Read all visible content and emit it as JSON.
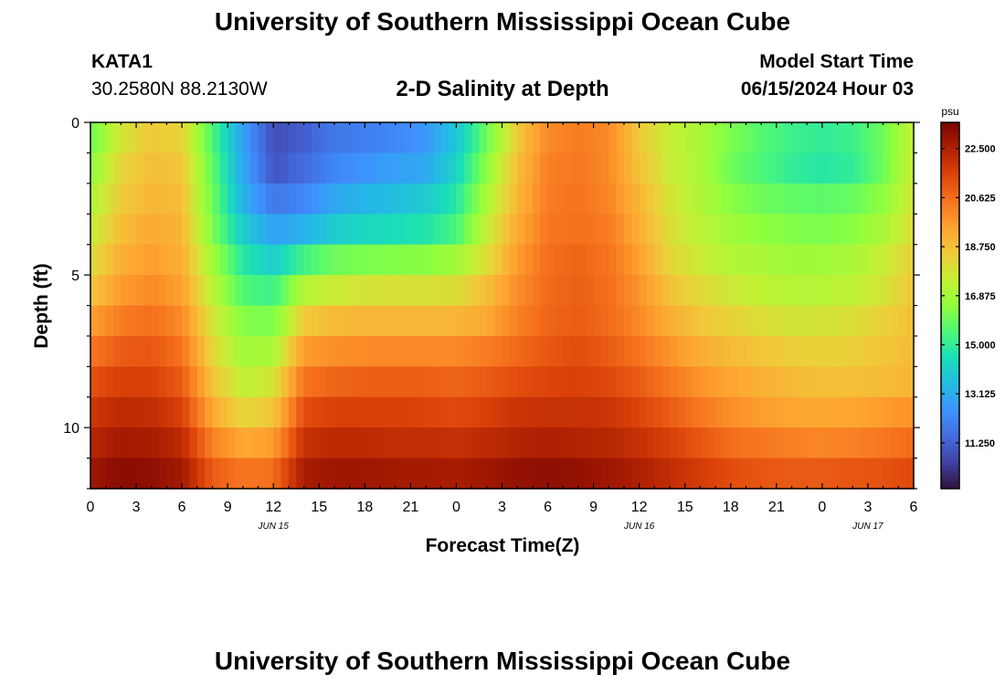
{
  "header": {
    "title": "University of Southern Mississippi Ocean Cube",
    "station": "KATA1",
    "coords": "30.2580N  88.2130W",
    "plot_title": "2-D Salinity at Depth",
    "model_start_label": "Model Start Time",
    "model_start_value": "06/15/2024 Hour 03"
  },
  "footer": {
    "title": "University of Southern Mississippi Ocean Cube"
  },
  "chart_data": {
    "type": "heatmap",
    "title": "2-D Salinity at Depth",
    "xlabel": "Forecast Time(Z)",
    "ylabel": "Depth (ft)",
    "x_range_hours": [
      0,
      54
    ],
    "y_range_ft": [
      0,
      12
    ],
    "x_ticks": [
      "0",
      "3",
      "6",
      "9",
      "12",
      "15",
      "18",
      "21",
      "0",
      "3",
      "6",
      "9",
      "12",
      "15",
      "18",
      "21",
      "0",
      "3",
      "6"
    ],
    "y_ticks": [
      0,
      5,
      10
    ],
    "date_labels": [
      {
        "hour": 12,
        "label": "JUN 15"
      },
      {
        "hour": 36,
        "label": "JUN 16"
      },
      {
        "hour": 51,
        "label": "JUN 17"
      }
    ],
    "colorbar": {
      "unit": "psu",
      "min": 9.5,
      "max": 23.5,
      "ticks": [
        "22.500",
        "20.625",
        "18.750",
        "16.875",
        "15.000",
        "13.125",
        "11.250"
      ]
    },
    "depth_levels_ft": [
      0.5,
      1.5,
      2.5,
      3.5,
      4.5,
      5.5,
      6.5,
      7.5,
      8.5,
      9.5,
      10.5,
      11.5
    ],
    "time_hours": [
      0,
      2,
      4,
      6,
      8,
      10,
      12,
      14,
      16,
      18,
      20,
      22,
      24,
      26,
      28,
      30,
      32,
      34,
      36,
      38,
      40,
      42,
      44,
      46,
      48,
      50,
      52,
      54
    ],
    "salinity_psu": [
      [
        16.0,
        17.8,
        18.5,
        18.3,
        15.5,
        12.8,
        10.8,
        11.2,
        11.8,
        12.0,
        12.2,
        12.6,
        13.8,
        16.0,
        18.5,
        20.0,
        20.3,
        20.0,
        18.5,
        17.5,
        17.0,
        16.2,
        15.6,
        15.2,
        15.0,
        15.2,
        16.0,
        17.5
      ],
      [
        16.5,
        18.2,
        18.8,
        18.6,
        15.8,
        13.0,
        11.0,
        11.5,
        12.2,
        12.5,
        12.8,
        13.0,
        14.2,
        16.5,
        18.8,
        20.2,
        20.4,
        20.0,
        18.7,
        17.6,
        17.0,
        16.0,
        15.5,
        15.0,
        14.8,
        15.0,
        16.0,
        17.6
      ],
      [
        17.0,
        18.5,
        19.0,
        18.8,
        16.0,
        13.3,
        11.8,
        12.2,
        13.0,
        13.3,
        13.6,
        13.9,
        14.8,
        17.0,
        19.0,
        20.3,
        20.5,
        20.1,
        19.0,
        17.8,
        17.1,
        16.4,
        16.0,
        15.8,
        15.7,
        15.9,
        16.5,
        17.8
      ],
      [
        17.5,
        18.8,
        19.3,
        19.0,
        16.2,
        14.0,
        12.8,
        13.2,
        14.0,
        14.3,
        14.5,
        14.7,
        15.4,
        17.5,
        19.3,
        20.4,
        20.6,
        20.3,
        19.2,
        18.0,
        17.3,
        16.8,
        16.5,
        16.3,
        16.2,
        16.4,
        17.0,
        18.0
      ],
      [
        18.0,
        19.2,
        19.6,
        19.2,
        16.8,
        14.8,
        14.0,
        15.3,
        16.0,
        16.2,
        16.3,
        16.4,
        16.8,
        18.0,
        19.6,
        20.6,
        20.8,
        20.5,
        19.5,
        18.2,
        17.6,
        17.2,
        17.0,
        16.8,
        16.8,
        17.0,
        17.5,
        18.4
      ],
      [
        18.6,
        19.6,
        20.0,
        19.5,
        17.3,
        15.5,
        15.2,
        17.2,
        17.6,
        17.8,
        17.9,
        17.9,
        18.0,
        18.8,
        19.9,
        20.7,
        20.9,
        20.6,
        19.8,
        18.7,
        18.1,
        17.7,
        17.4,
        17.2,
        17.2,
        17.4,
        17.8,
        18.6
      ],
      [
        19.5,
        20.3,
        20.6,
        20.0,
        17.8,
        16.3,
        16.2,
        18.5,
        18.9,
        19.0,
        19.0,
        19.0,
        19.0,
        19.3,
        20.2,
        20.8,
        21.0,
        20.7,
        20.0,
        19.2,
        18.6,
        18.3,
        18.0,
        17.8,
        17.8,
        18.0,
        18.3,
        18.8
      ],
      [
        20.4,
        21.0,
        21.1,
        20.5,
        18.2,
        16.8,
        17.0,
        19.6,
        19.9,
        20.0,
        20.0,
        20.0,
        20.0,
        20.3,
        20.7,
        21.1,
        21.3,
        21.0,
        20.5,
        19.8,
        19.2,
        18.9,
        18.6,
        18.4,
        18.3,
        18.4,
        18.6,
        18.9
      ],
      [
        21.2,
        21.6,
        21.6,
        21.0,
        18.7,
        17.4,
        17.8,
        20.5,
        20.8,
        20.9,
        20.9,
        20.9,
        20.8,
        21.0,
        21.3,
        21.5,
        21.6,
        21.4,
        21.0,
        20.4,
        19.8,
        19.4,
        19.1,
        18.9,
        18.8,
        18.8,
        18.9,
        19.0
      ],
      [
        21.8,
        22.2,
        22.1,
        21.6,
        19.3,
        18.2,
        18.6,
        21.3,
        21.6,
        21.6,
        21.6,
        21.5,
        21.4,
        21.6,
        21.9,
        22.0,
        22.0,
        21.9,
        21.5,
        21.0,
        20.4,
        19.9,
        19.6,
        19.4,
        19.3,
        19.4,
        19.6,
        19.8
      ],
      [
        22.3,
        22.7,
        22.6,
        22.2,
        20.2,
        19.3,
        19.6,
        22.0,
        22.2,
        22.2,
        22.1,
        22.1,
        22.0,
        22.2,
        22.4,
        22.5,
        22.4,
        22.3,
        22.0,
        21.6,
        21.1,
        20.6,
        20.4,
        20.2,
        20.1,
        20.2,
        20.4,
        20.7
      ],
      [
        22.8,
        23.2,
        23.1,
        22.7,
        21.0,
        20.4,
        20.6,
        22.6,
        22.8,
        22.8,
        22.7,
        22.7,
        22.6,
        22.8,
        23.0,
        23.1,
        23.0,
        22.8,
        22.5,
        22.1,
        21.7,
        21.3,
        21.1,
        21.0,
        21.0,
        21.1,
        21.2,
        21.4
      ]
    ]
  }
}
